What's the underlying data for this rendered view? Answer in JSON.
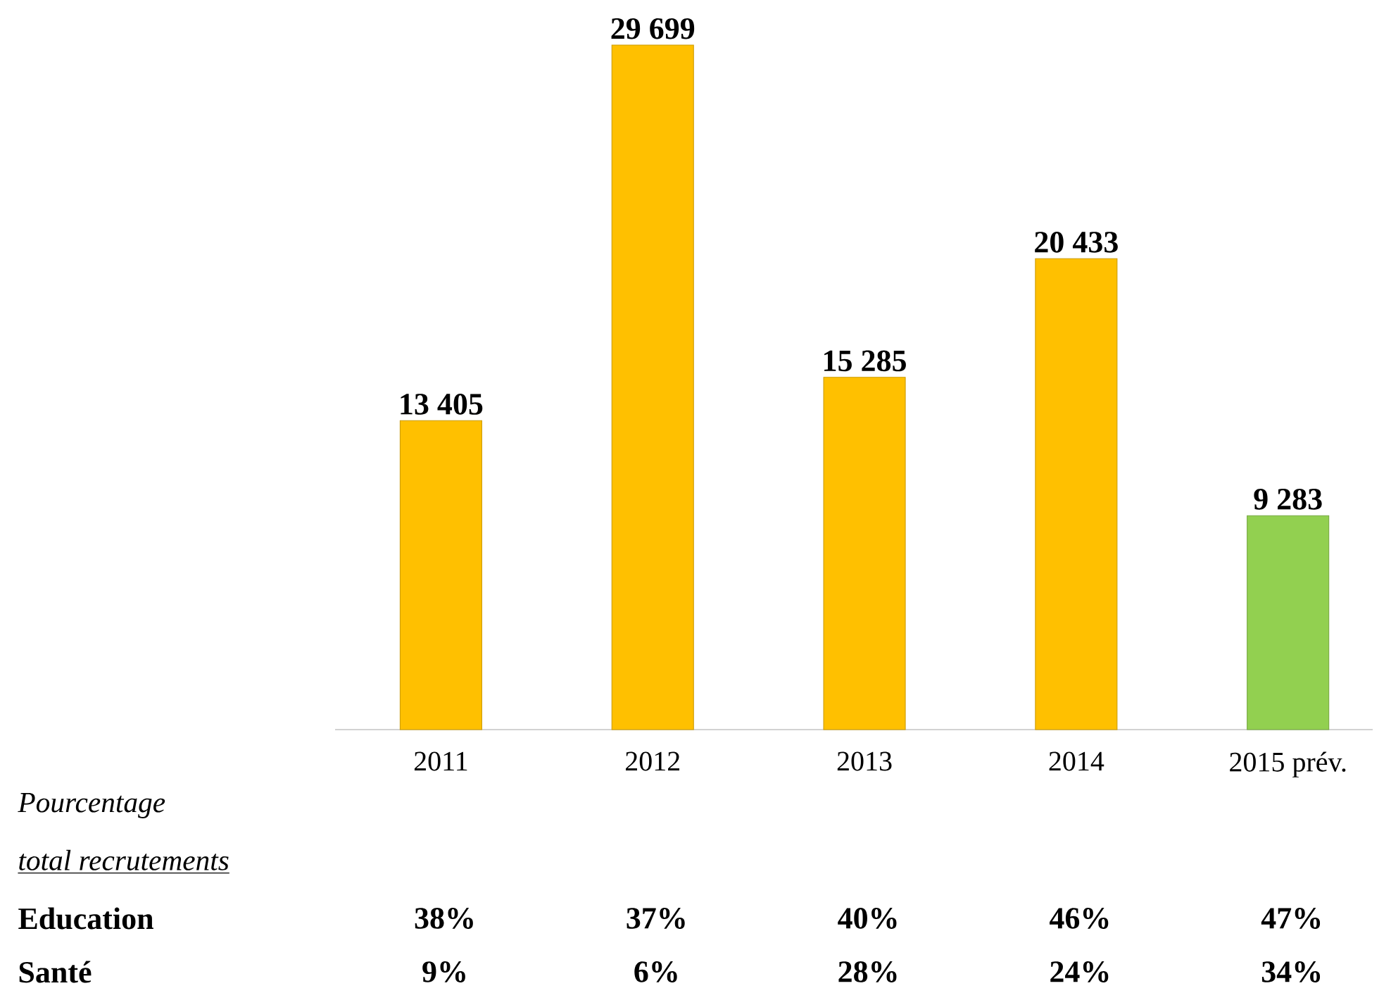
{
  "chart_data": {
    "type": "bar",
    "categories": [
      "2011",
      "2012",
      "2013",
      "2014",
      "2015 prév."
    ],
    "values": [
      13405,
      29699,
      15285,
      20433,
      9283
    ],
    "value_labels": [
      "13 405",
      "29 699",
      "15 285",
      "20 433",
      "9 283"
    ],
    "colors": [
      "#ffc000",
      "#ffc000",
      "#ffc000",
      "#ffc000",
      "#92d050"
    ],
    "annotations": [
      "Pourcentage",
      "total recrutements",
      "Education",
      "38%",
      "37%",
      "40%",
      "46%",
      "47%",
      "Santé",
      "9%",
      "6%",
      "28%",
      "24%",
      "34%"
    ]
  }
}
